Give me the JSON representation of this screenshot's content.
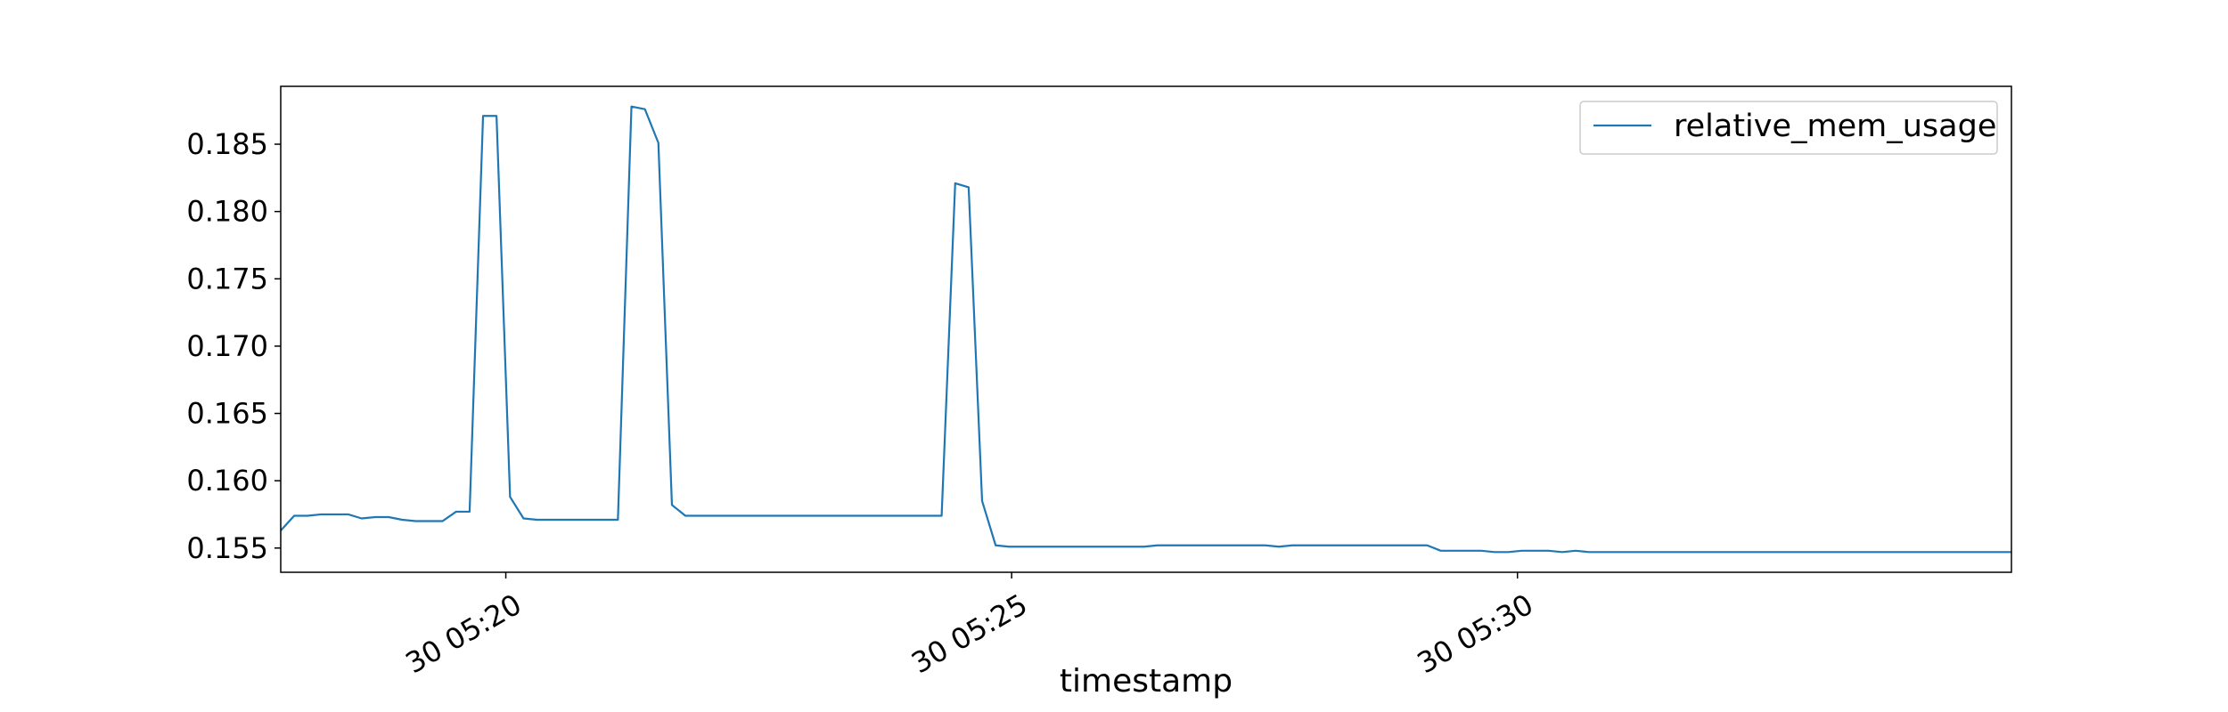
{
  "chart_data": {
    "type": "line",
    "title": "",
    "xlabel": "timestamp",
    "ylabel": "",
    "x_axis": {
      "type": "time",
      "ticks": [
        "30 05:20",
        "30 05:25",
        "30 05:30"
      ],
      "range_minutes": [
        17.775,
        34.883
      ]
    },
    "y_axis": {
      "ticks": [
        "0.155",
        "0.160",
        "0.165",
        "0.170",
        "0.175",
        "0.180",
        "0.185"
      ],
      "range": [
        0.1532,
        0.1893
      ]
    },
    "grid": false,
    "legend": {
      "position": "top-right",
      "entries": [
        "relative_mem_usage"
      ]
    },
    "colors": {
      "line": "#1f77b4",
      "frame": "#000000",
      "legend_border": "#cccccc"
    },
    "series": [
      {
        "name": "relative_mem_usage",
        "x_minutes": [
          17.775,
          17.908,
          18.042,
          18.175,
          18.308,
          18.442,
          18.575,
          18.708,
          18.842,
          18.975,
          19.108,
          19.242,
          19.375,
          19.508,
          19.642,
          19.775,
          19.908,
          20.042,
          20.175,
          20.308,
          20.442,
          20.575,
          20.708,
          20.842,
          20.975,
          21.108,
          21.242,
          21.375,
          21.508,
          21.642,
          21.775,
          21.908,
          22.042,
          22.175,
          22.308,
          22.442,
          22.575,
          22.708,
          22.842,
          22.975,
          23.108,
          23.242,
          23.375,
          23.508,
          23.642,
          23.775,
          23.908,
          24.042,
          24.175,
          24.308,
          24.442,
          24.575,
          24.708,
          24.842,
          24.975,
          25.108,
          25.242,
          25.375,
          25.508,
          25.642,
          25.775,
          25.908,
          26.042,
          26.175,
          26.308,
          26.442,
          26.575,
          26.708,
          26.842,
          26.975,
          27.108,
          27.242,
          27.375,
          27.508,
          27.642,
          27.775,
          27.908,
          28.042,
          28.175,
          28.308,
          28.442,
          28.575,
          28.708,
          28.842,
          28.975,
          29.108,
          29.242,
          29.375,
          29.508,
          29.642,
          29.775,
          29.908,
          30.042,
          30.175,
          30.308,
          30.442,
          30.575,
          30.708,
          30.842,
          30.975,
          31.108,
          31.242,
          31.375,
          31.508,
          31.642,
          31.775,
          31.908,
          32.042,
          32.175,
          32.308,
          32.442,
          32.575,
          32.708,
          32.842,
          32.975,
          33.108,
          33.242,
          33.375,
          33.508,
          33.642,
          33.775,
          33.908,
          34.042,
          34.175,
          34.308,
          34.442,
          34.575,
          34.708,
          34.842,
          34.883
        ],
        "values": [
          0.1563,
          0.1574,
          0.1574,
          0.1575,
          0.1575,
          0.1575,
          0.1572,
          0.1573,
          0.1573,
          0.1571,
          0.157,
          0.157,
          0.157,
          0.1577,
          0.1577,
          0.1871,
          0.1871,
          0.1588,
          0.1572,
          0.1571,
          0.1571,
          0.1571,
          0.1571,
          0.1571,
          0.1571,
          0.1571,
          0.1878,
          0.1876,
          0.1851,
          0.1582,
          0.1574,
          0.1574,
          0.1574,
          0.1574,
          0.1574,
          0.1574,
          0.1574,
          0.1574,
          0.1574,
          0.1574,
          0.1574,
          0.1574,
          0.1574,
          0.1574,
          0.1574,
          0.1574,
          0.1574,
          0.1574,
          0.1574,
          0.1574,
          0.1821,
          0.1818,
          0.1585,
          0.1552,
          0.1551,
          0.1551,
          0.1551,
          0.1551,
          0.1551,
          0.1551,
          0.1551,
          0.1551,
          0.1551,
          0.1551,
          0.1551,
          0.1552,
          0.1552,
          0.1552,
          0.1552,
          0.1552,
          0.1552,
          0.1552,
          0.1552,
          0.1552,
          0.1551,
          0.1552,
          0.1552,
          0.1552,
          0.1552,
          0.1552,
          0.1552,
          0.1552,
          0.1552,
          0.1552,
          0.1552,
          0.1552,
          0.1548,
          0.1548,
          0.1548,
          0.1548,
          0.1547,
          0.1547,
          0.1548,
          0.1548,
          0.1548,
          0.1547,
          0.1548,
          0.1547,
          0.1547,
          0.1547,
          0.1547,
          0.1547,
          0.1547,
          0.1547,
          0.1547,
          0.1547,
          0.1547,
          0.1547,
          0.1547,
          0.1547,
          0.1547,
          0.1547,
          0.1547,
          0.1547,
          0.1547,
          0.1547,
          0.1547,
          0.1547,
          0.1547,
          0.1547,
          0.1547,
          0.1547,
          0.1547,
          0.1547,
          0.1547,
          0.1547,
          0.1547,
          0.1547,
          0.1547,
          0.1547
        ]
      }
    ]
  }
}
